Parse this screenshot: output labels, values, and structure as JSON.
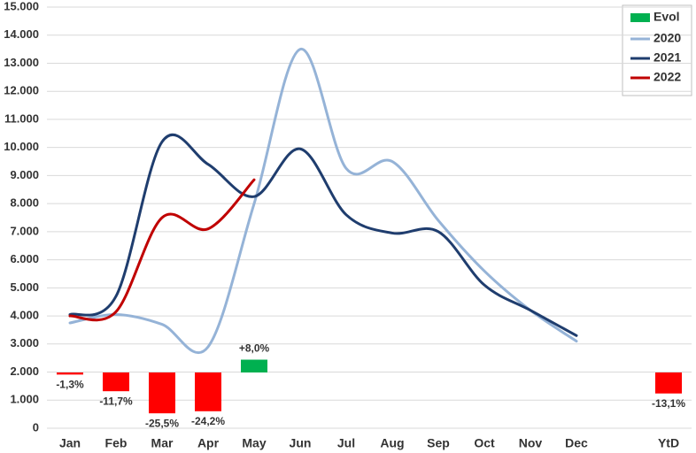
{
  "chart_data": {
    "type": "line",
    "categories": [
      "Jan",
      "Feb",
      "Mar",
      "Apr",
      "May",
      "Jun",
      "Jul",
      "Aug",
      "Sep",
      "Oct",
      "Nov",
      "Dec",
      null,
      "YtD"
    ],
    "ylim": [
      0,
      15000
    ],
    "yticks": [
      0,
      {
        "value": 1000,
        "label": "1.000"
      },
      {
        "value": 2000,
        "label": "2.000"
      },
      {
        "value": 3000,
        "label": "3.000"
      },
      {
        "value": 4000,
        "label": "4.000"
      },
      {
        "value": 5000,
        "label": "5.000"
      },
      {
        "value": 6000,
        "label": "6.000"
      },
      {
        "value": 7000,
        "label": "7.000"
      },
      {
        "value": 8000,
        "label": "8.000"
      },
      {
        "value": 9000,
        "label": "9.000"
      },
      {
        "value": 10000,
        "label": "10.000"
      },
      {
        "value": 11000,
        "label": "11.000"
      },
      {
        "value": 12000,
        "label": "12.000"
      },
      {
        "value": 13000,
        "label": "13.000"
      },
      {
        "value": 14000,
        "label": "14.000"
      },
      {
        "value": 15000,
        "label": "15.000"
      }
    ],
    "grid": true,
    "legend": "top-right",
    "evol": {
      "name": "Evol",
      "type": "bar",
      "color": "#00b050",
      "negative_color": "#ff0000",
      "values": [
        -1.3,
        -11.7,
        -25.5,
        -24.2,
        8.0,
        null,
        null,
        null,
        null,
        null,
        null,
        null,
        null,
        -13.1
      ],
      "value_labels": [
        "-1,3%",
        "-11,7%",
        "-25,5%",
        "-24,2%",
        "+8,0%",
        null,
        null,
        null,
        null,
        null,
        null,
        null,
        null,
        "-13,1%"
      ]
    },
    "series": [
      {
        "name": "2020",
        "color": "#95b3d7",
        "values": [
          3750,
          4050,
          3700,
          2900,
          8000,
          13500,
          9250,
          9500,
          7400,
          5600,
          4200,
          3100,
          null,
          null
        ]
      },
      {
        "name": "2021",
        "color": "#1f3d6e",
        "values": [
          4050,
          4700,
          10200,
          9400,
          8250,
          9950,
          7600,
          6950,
          7000,
          5100,
          4200,
          3300,
          null,
          null
        ]
      },
      {
        "name": "2022",
        "color": "#c00000",
        "values": [
          4000,
          4150,
          7500,
          7100,
          8850,
          null,
          null,
          null,
          null,
          null,
          null,
          null,
          null,
          null
        ]
      }
    ]
  }
}
